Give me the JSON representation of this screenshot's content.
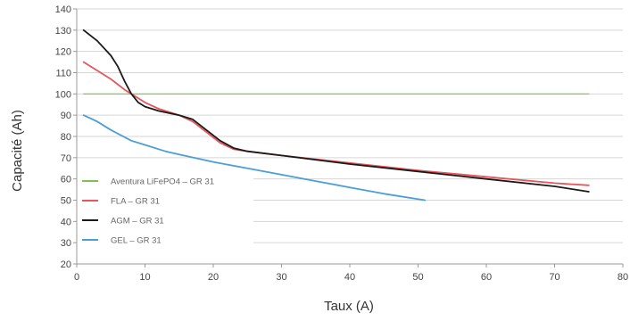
{
  "chart_data": {
    "type": "line",
    "title": "",
    "xlabel": "Taux (A)",
    "ylabel": "Capacité (Ah)",
    "xlim": [
      0,
      80
    ],
    "ylim": [
      20,
      140
    ],
    "xticks": [
      0,
      10,
      20,
      30,
      40,
      50,
      60,
      70,
      80
    ],
    "yticks": [
      20,
      30,
      40,
      50,
      60,
      70,
      80,
      90,
      100,
      110,
      120,
      130,
      140
    ],
    "grid": "horizontal",
    "legend_position": "left-bottom",
    "series": [
      {
        "name": "Aventura LiFePO4 – GR 31",
        "color": "#7cc24e",
        "points": [
          [
            1,
            100
          ],
          [
            75,
            100
          ]
        ]
      },
      {
        "name": "FLA – GR 31",
        "color": "#e8555a",
        "points": [
          [
            1,
            115
          ],
          [
            3,
            111
          ],
          [
            5,
            107
          ],
          [
            7,
            102
          ],
          [
            8,
            100
          ],
          [
            9,
            98
          ],
          [
            10,
            96
          ],
          [
            12,
            93
          ],
          [
            15,
            90
          ],
          [
            17,
            87
          ],
          [
            19,
            82
          ],
          [
            21,
            77
          ],
          [
            23,
            74
          ],
          [
            25,
            73
          ],
          [
            30,
            71
          ],
          [
            40,
            67.5
          ],
          [
            50,
            64
          ],
          [
            60,
            61
          ],
          [
            70,
            58
          ],
          [
            75,
            57
          ]
        ]
      },
      {
        "name": "AGM – GR 31",
        "color": "#1a1a1a",
        "points": [
          [
            1,
            130
          ],
          [
            3,
            125
          ],
          [
            5,
            118
          ],
          [
            6,
            113
          ],
          [
            7,
            106
          ],
          [
            8,
            100
          ],
          [
            9,
            96
          ],
          [
            10,
            94
          ],
          [
            12,
            92
          ],
          [
            15,
            90
          ],
          [
            17,
            88
          ],
          [
            19,
            83
          ],
          [
            21,
            78
          ],
          [
            23,
            74.5
          ],
          [
            25,
            73
          ],
          [
            30,
            71
          ],
          [
            40,
            67
          ],
          [
            50,
            63.5
          ],
          [
            60,
            60
          ],
          [
            70,
            56.5
          ],
          [
            75,
            54
          ]
        ]
      },
      {
        "name": "GEL – GR 31",
        "color": "#4a9fd8",
        "points": [
          [
            1,
            90
          ],
          [
            3,
            87
          ],
          [
            5,
            83
          ],
          [
            8,
            78
          ],
          [
            10,
            76
          ],
          [
            13,
            73
          ],
          [
            15,
            71.5
          ],
          [
            20,
            68
          ],
          [
            25,
            65
          ],
          [
            30,
            62
          ],
          [
            35,
            59
          ],
          [
            40,
            56
          ],
          [
            45,
            53
          ],
          [
            51,
            50
          ]
        ]
      }
    ]
  }
}
